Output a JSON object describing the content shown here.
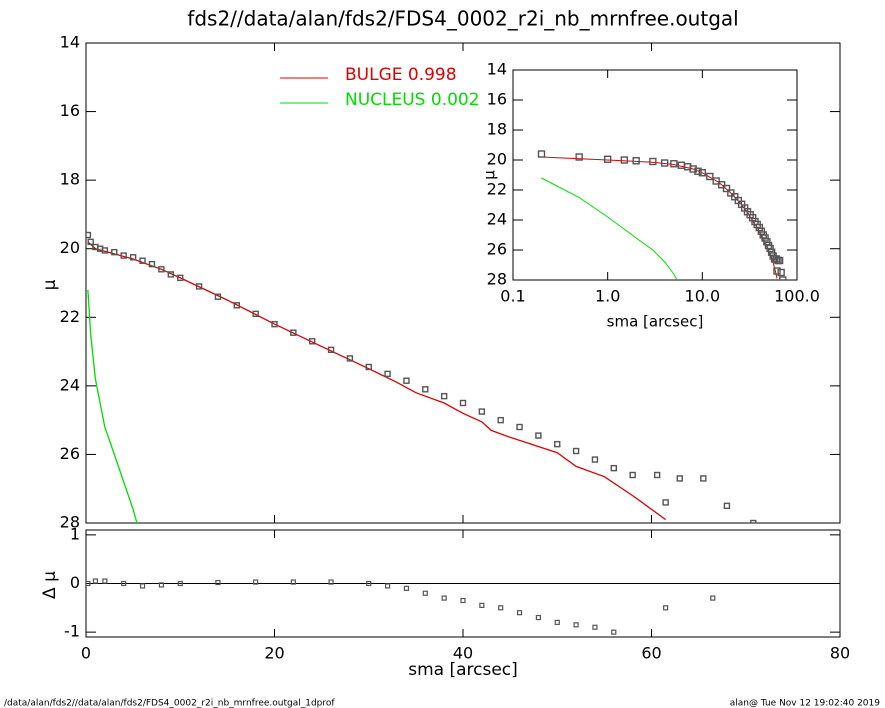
{
  "chart_data": [
    {
      "type": "line",
      "title": "fds2//data/alan/fds2/FDS4_0002_r2i_nb_mrnfree.outgal",
      "ylabel": "μ",
      "xlim": [
        0,
        80
      ],
      "xticks": [
        0,
        20,
        40,
        60,
        80
      ],
      "ylim": [
        28,
        14
      ],
      "yticks": [
        14,
        16,
        18,
        20,
        22,
        24,
        26,
        28
      ],
      "series": [
        {
          "name": "BULGE  0.998",
          "color": "#e00000",
          "x": [
            0.2,
            1,
            3,
            5,
            8,
            10,
            15,
            20,
            25,
            30,
            33,
            35,
            38,
            40,
            42,
            43,
            45,
            50,
            52,
            55,
            58,
            60,
            61.5
          ],
          "values": [
            19.8,
            20.0,
            20.15,
            20.3,
            20.6,
            20.85,
            21.5,
            22.2,
            22.85,
            23.5,
            23.9,
            24.2,
            24.5,
            24.8,
            25.05,
            25.3,
            25.5,
            25.95,
            26.35,
            26.65,
            27.2,
            27.6,
            27.9
          ]
        },
        {
          "name": "NUCLEUS  0.002",
          "color": "#00dd00",
          "x": [
            0.2,
            0.5,
            1,
            2,
            3,
            4,
            5,
            5.4
          ],
          "values": [
            21.2,
            22.5,
            23.8,
            25.2,
            26.0,
            26.8,
            27.6,
            28.0
          ]
        }
      ],
      "points": {
        "color": "#555555",
        "x": [
          0.2,
          0.5,
          1,
          1.5,
          2,
          3,
          4,
          5,
          6,
          7,
          8,
          9,
          10,
          12,
          14,
          16,
          18,
          20,
          22,
          24,
          26,
          28,
          30,
          32,
          34,
          36,
          38,
          40,
          42,
          44,
          46,
          48,
          50,
          52,
          54,
          56,
          58,
          60.6,
          61.5,
          63,
          65.5,
          68,
          70.8
        ],
        "values": [
          19.6,
          19.8,
          19.95,
          20.0,
          20.05,
          20.1,
          20.2,
          20.25,
          20.35,
          20.45,
          20.6,
          20.75,
          20.85,
          21.1,
          21.4,
          21.65,
          21.9,
          22.2,
          22.45,
          22.7,
          22.95,
          23.2,
          23.45,
          23.65,
          23.85,
          24.1,
          24.3,
          24.5,
          24.75,
          25.0,
          25.2,
          25.45,
          25.7,
          25.9,
          26.15,
          26.4,
          26.6,
          26.6,
          27.4,
          26.7,
          26.7,
          27.5,
          28.0
        ]
      }
    },
    {
      "type": "scatter",
      "ylabel": "Δ μ",
      "xlabel": "sma [arcsec]",
      "xlim": [
        0,
        80
      ],
      "xticks": [
        0,
        20,
        40,
        60,
        80
      ],
      "ylim": [
        -1.1,
        1.1
      ],
      "yticks": [
        -1,
        0,
        1
      ],
      "color": "#555555",
      "x": [
        0.2,
        1,
        2,
        4,
        6,
        8,
        10,
        14,
        18,
        22,
        26,
        30,
        32,
        34,
        36,
        38,
        40,
        42,
        44,
        46,
        48,
        50,
        52,
        54,
        56,
        61.5,
        66.5
      ],
      "values": [
        0,
        0.05,
        0.05,
        0.0,
        -0.05,
        -0.03,
        0.0,
        0.02,
        0.03,
        0.03,
        0.03,
        0.0,
        -0.05,
        -0.1,
        -0.2,
        -0.3,
        -0.35,
        -0.45,
        -0.5,
        -0.6,
        -0.7,
        -0.8,
        -0.85,
        -0.9,
        -1.0,
        -0.5,
        -0.3
      ]
    },
    {
      "type": "inset",
      "ylabel": "μ",
      "xlabel": "sma [arcsec]",
      "log_x": true,
      "xlim": [
        0.1,
        100
      ],
      "xticks": [
        {
          "value": 0.1,
          "label": "0.1"
        },
        {
          "value": 1,
          "label": "1.0"
        },
        {
          "value": 10,
          "label": "10.0"
        },
        {
          "value": 100,
          "label": "100.0"
        }
      ],
      "ylim": [
        28,
        14
      ],
      "yticks": [
        14,
        16,
        18,
        20,
        22,
        24,
        26,
        28
      ]
    }
  ],
  "footer": {
    "left": "/data/alan/fds2//data/alan/fds2/FDS4_0002_r2i_nb_mrnfree.outgal_1dprof",
    "right": "alan@  Tue Nov 12 19:02:40 2019"
  }
}
